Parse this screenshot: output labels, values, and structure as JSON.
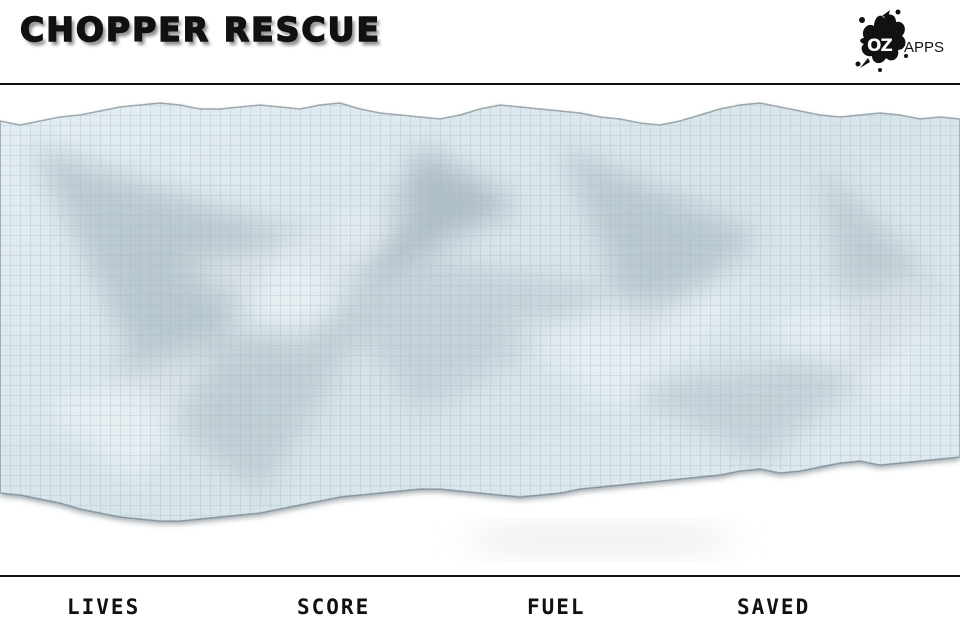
{
  "header": {
    "title": "CHOPPER RESCUE",
    "logo": {
      "icon": "splat-logo-icon",
      "brand": "OZ",
      "suffix": "APPS"
    }
  },
  "playfield": {
    "texture": "crumpled-graph-paper",
    "colors": {
      "paper": "#dde9ef",
      "grid": "#9db4c2",
      "shadow": "#8d9ea8"
    }
  },
  "hud": {
    "lives_label": "LIVES",
    "score_label": "SCORE",
    "fuel_label": "FUEL",
    "saved_label": "SAVED"
  }
}
